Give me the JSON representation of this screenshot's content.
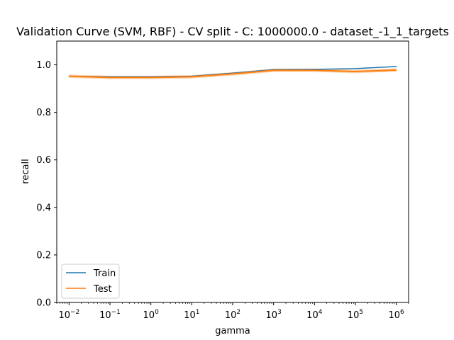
{
  "chart_data": {
    "type": "line",
    "title": "Validation Curve (SVM, RBF) - CV split - C: 1000000.0 - dataset_-1_1_targets",
    "xlabel": "gamma",
    "ylabel": "recall",
    "xscale": "log",
    "x": [
      0.01,
      0.1,
      1,
      10,
      100,
      1000,
      10000,
      100000,
      1000000
    ],
    "xlim": [
      0.005,
      2000000
    ],
    "ylim": [
      0.0,
      1.1
    ],
    "xticks": [
      {
        "base": "10",
        "exp": "−2",
        "value": 0.01
      },
      {
        "base": "10",
        "exp": "−1",
        "value": 0.1
      },
      {
        "base": "10",
        "exp": "0",
        "value": 1
      },
      {
        "base": "10",
        "exp": "1",
        "value": 10
      },
      {
        "base": "10",
        "exp": "2",
        "value": 100
      },
      {
        "base": "10",
        "exp": "3",
        "value": 1000
      },
      {
        "base": "10",
        "exp": "4",
        "value": 10000
      },
      {
        "base": "10",
        "exp": "5",
        "value": 100000
      },
      {
        "base": "10",
        "exp": "6",
        "value": 1000000
      }
    ],
    "yticks": [
      "0.0",
      "0.2",
      "0.4",
      "0.6",
      "0.8",
      "1.0"
    ],
    "series": [
      {
        "name": "Train",
        "color": "#1f77b4",
        "values": [
          0.952,
          0.95,
          0.95,
          0.952,
          0.965,
          0.98,
          0.981,
          0.984,
          0.993
        ]
      },
      {
        "name": "Test",
        "color": "#ff7f0e",
        "values": [
          0.952,
          0.947,
          0.947,
          0.95,
          0.962,
          0.977,
          0.977,
          0.972,
          0.978
        ],
        "band": 0.007
      }
    ],
    "legend": {
      "position": "lower-left"
    },
    "grid": false
  }
}
